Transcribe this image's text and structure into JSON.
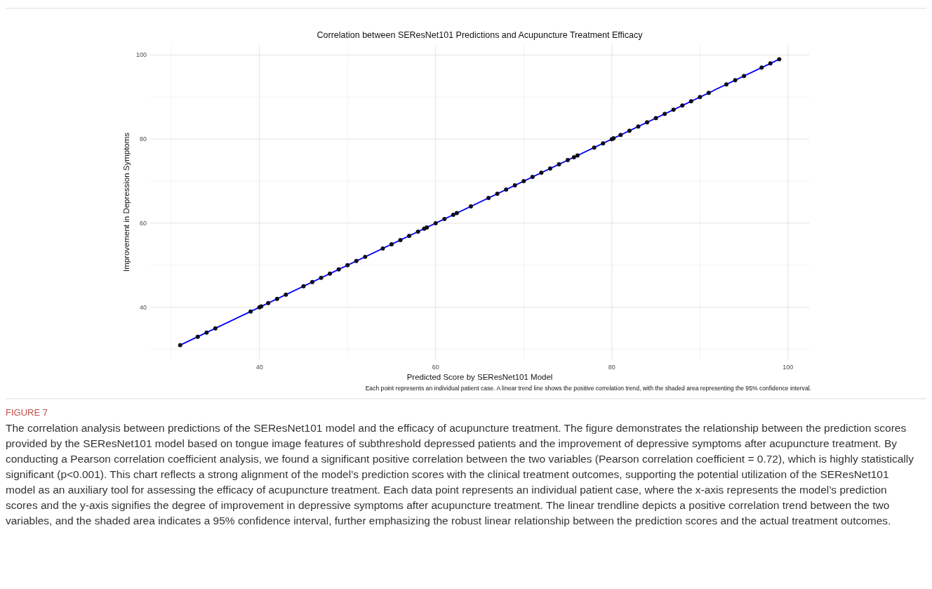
{
  "chart_data": {
    "type": "scatter",
    "title": "Correlation between SEResNet101 Predictions and Acupuncture Treatment Efficacy",
    "xlabel": "Predicted Score by SEResNet101 Model",
    "ylabel": "Improvement in Depression Symptoms",
    "series": [
      {
        "type": "line",
        "marker": "none",
        "color": "#0000ff",
        "x": [
          31,
          99
        ],
        "values": [
          31,
          99
        ]
      },
      {
        "type": "scatter",
        "color": "#0d0d1a",
        "x": [
          31,
          33,
          34,
          35,
          39,
          40,
          40.2,
          41,
          42,
          43,
          45,
          46,
          47,
          48,
          49,
          50,
          51,
          52,
          54,
          55,
          56,
          57,
          58,
          58.7,
          59,
          60,
          61,
          62,
          62.4,
          64,
          66,
          67,
          68,
          69,
          70,
          71,
          72,
          73,
          74,
          75,
          75.7,
          76.1,
          78,
          79,
          80,
          80.2,
          81,
          82,
          83,
          84,
          85,
          86,
          87,
          88,
          89,
          90,
          91,
          93,
          94,
          95,
          97,
          98,
          99
        ],
        "values": [
          31,
          33,
          34,
          35,
          39,
          40,
          40.2,
          41,
          42,
          43,
          45,
          46,
          47,
          48,
          49,
          50,
          51,
          52,
          54,
          55,
          56,
          57,
          58,
          58.7,
          59,
          60,
          61,
          62,
          62.4,
          64,
          66,
          67,
          68,
          69,
          70,
          71,
          72,
          73,
          74,
          75,
          75.7,
          76.1,
          78,
          79,
          80,
          80.2,
          81,
          82,
          83,
          84,
          85,
          86,
          87,
          88,
          89,
          90,
          91,
          93,
          94,
          95,
          97,
          98,
          99
        ]
      }
    ],
    "xlim": [
      27.6,
      102.4
    ],
    "ylim": [
      27.6,
      102.4
    ],
    "xticks": [
      {
        "value": 30,
        "label": null
      },
      40,
      {
        "value": 50,
        "label": null
      },
      60,
      {
        "value": 70,
        "label": null
      },
      80,
      {
        "value": 90,
        "label": null
      },
      100
    ],
    "yticks": [
      {
        "value": 30,
        "label": null
      },
      40,
      {
        "value": 50,
        "label": null
      },
      60,
      {
        "value": 70,
        "label": null
      },
      80,
      {
        "value": 90,
        "label": null
      },
      100
    ],
    "grid": true,
    "marker": "circle",
    "annotations": [
      "Each point represents an individual patient case. A linear trend line shows the positive correlation trend, with the shaded area representing the 95% confidence interval.",
      "FIGURE 7",
      "The correlation analysis between predictions of the SEResNet101 model and the efficacy of acupuncture treatment. The figure demonstrates the relationship between the prediction scores provided by the SEResNet101 model based on tongue image features of subthreshold depressed patients and the improvement of depressive symptoms after acupuncture treatment. By conducting a Pearson correlation coefficient analysis, we found a significant positive correlation between the two variables (Pearson correlation coefficient = 0.72), which is highly statistically significant (p<0.001). This chart reflects a strong alignment of the model’s prediction scores with the clinical treatment outcomes, supporting the potential utilization of the SEResNet101 model as an auxiliary tool for assessing the efficacy of acupuncture treatment. Each data point represents an individual patient case, where the x-axis represents the model’s prediction scores and the y-axis signifies the degree of improvement in depressive symptoms after acupuncture treatment. The linear trendline depicts a positive correlation trend between the two variables, and the shaded area indicates a 95% confidence interval, further emphasizing the robust linear relationship between the prediction scores and the actual treatment outcomes."
    ]
  }
}
